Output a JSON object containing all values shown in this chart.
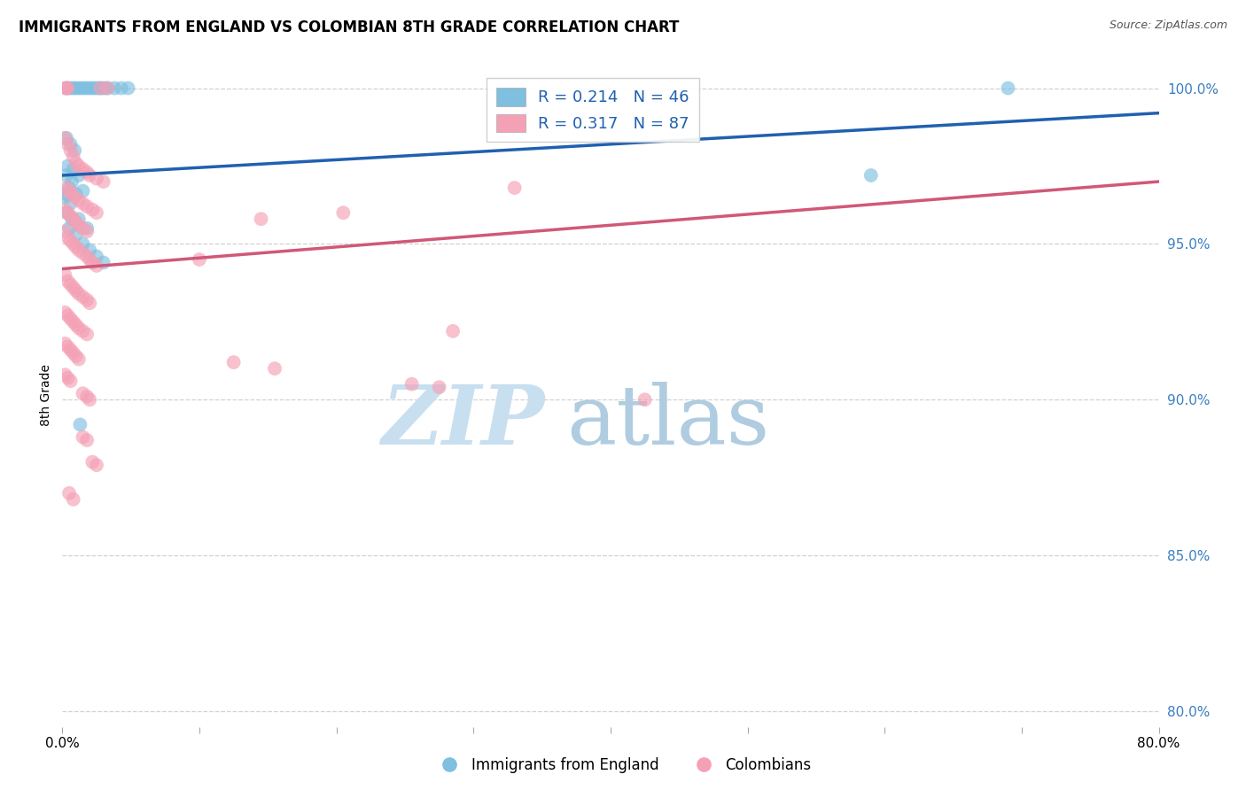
{
  "title": "IMMIGRANTS FROM ENGLAND VS COLOMBIAN 8TH GRADE CORRELATION CHART",
  "source": "Source: ZipAtlas.com",
  "ylabel": "8th Grade",
  "ylabel_right_labels": [
    "100.0%",
    "95.0%",
    "90.0%",
    "85.0%",
    "80.0%"
  ],
  "ylabel_right_values": [
    1.0,
    0.95,
    0.9,
    0.85,
    0.8
  ],
  "xmin": 0.0,
  "xmax": 0.8,
  "ymin": 0.795,
  "ymax": 1.008,
  "england_R": 0.214,
  "england_N": 46,
  "colombia_R": 0.317,
  "colombia_N": 87,
  "england_color": "#7fbfdf",
  "colombia_color": "#f4a0b5",
  "england_line_color": "#2060b0",
  "colombia_line_color": "#d05878",
  "england_trend_x": [
    0.0,
    0.8
  ],
  "england_trend_y": [
    0.972,
    0.992
  ],
  "colombia_trend_x": [
    0.0,
    0.8
  ],
  "colombia_trend_y": [
    0.942,
    0.97
  ],
  "england_scatter": [
    [
      0.003,
      1.0
    ],
    [
      0.005,
      1.0
    ],
    [
      0.007,
      1.0
    ],
    [
      0.009,
      1.0
    ],
    [
      0.011,
      1.0
    ],
    [
      0.013,
      1.0
    ],
    [
      0.015,
      1.0
    ],
    [
      0.017,
      1.0
    ],
    [
      0.019,
      1.0
    ],
    [
      0.021,
      1.0
    ],
    [
      0.023,
      1.0
    ],
    [
      0.025,
      1.0
    ],
    [
      0.027,
      1.0
    ],
    [
      0.029,
      1.0
    ],
    [
      0.031,
      1.0
    ],
    [
      0.033,
      1.0
    ],
    [
      0.038,
      1.0
    ],
    [
      0.043,
      1.0
    ],
    [
      0.048,
      1.0
    ],
    [
      0.003,
      0.984
    ],
    [
      0.006,
      0.982
    ],
    [
      0.009,
      0.98
    ],
    [
      0.004,
      0.975
    ],
    [
      0.008,
      0.974
    ],
    [
      0.012,
      0.972
    ],
    [
      0.005,
      0.968
    ],
    [
      0.01,
      0.966
    ],
    [
      0.003,
      0.96
    ],
    [
      0.007,
      0.958
    ],
    [
      0.005,
      0.955
    ],
    [
      0.01,
      0.953
    ],
    [
      0.015,
      0.95
    ],
    [
      0.02,
      0.948
    ],
    [
      0.025,
      0.946
    ],
    [
      0.03,
      0.944
    ],
    [
      0.003,
      0.966
    ],
    [
      0.006,
      0.963
    ],
    [
      0.012,
      0.958
    ],
    [
      0.018,
      0.955
    ],
    [
      0.003,
      0.972
    ],
    [
      0.007,
      0.97
    ],
    [
      0.015,
      0.967
    ],
    [
      0.013,
      0.892
    ],
    [
      0.59,
      0.972
    ],
    [
      0.69,
      1.0
    ],
    [
      0.002,
      0.965
    ]
  ],
  "colombia_scatter": [
    [
      0.002,
      1.0
    ],
    [
      0.003,
      1.0
    ],
    [
      0.004,
      1.0
    ],
    [
      0.028,
      1.0
    ],
    [
      0.033,
      1.0
    ],
    [
      0.002,
      0.984
    ],
    [
      0.004,
      0.982
    ],
    [
      0.006,
      0.98
    ],
    [
      0.008,
      0.978
    ],
    [
      0.01,
      0.976
    ],
    [
      0.012,
      0.975
    ],
    [
      0.015,
      0.974
    ],
    [
      0.018,
      0.973
    ],
    [
      0.02,
      0.972
    ],
    [
      0.025,
      0.971
    ],
    [
      0.03,
      0.97
    ],
    [
      0.003,
      0.968
    ],
    [
      0.005,
      0.967
    ],
    [
      0.007,
      0.966
    ],
    [
      0.009,
      0.965
    ],
    [
      0.012,
      0.964
    ],
    [
      0.015,
      0.963
    ],
    [
      0.018,
      0.962
    ],
    [
      0.022,
      0.961
    ],
    [
      0.025,
      0.96
    ],
    [
      0.002,
      0.961
    ],
    [
      0.004,
      0.96
    ],
    [
      0.006,
      0.959
    ],
    [
      0.008,
      0.958
    ],
    [
      0.01,
      0.957
    ],
    [
      0.012,
      0.956
    ],
    [
      0.015,
      0.955
    ],
    [
      0.018,
      0.954
    ],
    [
      0.002,
      0.954
    ],
    [
      0.004,
      0.952
    ],
    [
      0.006,
      0.951
    ],
    [
      0.008,
      0.95
    ],
    [
      0.01,
      0.949
    ],
    [
      0.012,
      0.948
    ],
    [
      0.015,
      0.947
    ],
    [
      0.018,
      0.946
    ],
    [
      0.02,
      0.945
    ],
    [
      0.022,
      0.944
    ],
    [
      0.025,
      0.943
    ],
    [
      0.002,
      0.94
    ],
    [
      0.004,
      0.938
    ],
    [
      0.006,
      0.937
    ],
    [
      0.008,
      0.936
    ],
    [
      0.01,
      0.935
    ],
    [
      0.012,
      0.934
    ],
    [
      0.015,
      0.933
    ],
    [
      0.018,
      0.932
    ],
    [
      0.02,
      0.931
    ],
    [
      0.002,
      0.928
    ],
    [
      0.004,
      0.927
    ],
    [
      0.006,
      0.926
    ],
    [
      0.008,
      0.925
    ],
    [
      0.01,
      0.924
    ],
    [
      0.012,
      0.923
    ],
    [
      0.015,
      0.922
    ],
    [
      0.018,
      0.921
    ],
    [
      0.002,
      0.918
    ],
    [
      0.004,
      0.917
    ],
    [
      0.006,
      0.916
    ],
    [
      0.008,
      0.915
    ],
    [
      0.01,
      0.914
    ],
    [
      0.012,
      0.913
    ],
    [
      0.002,
      0.908
    ],
    [
      0.004,
      0.907
    ],
    [
      0.006,
      0.906
    ],
    [
      0.015,
      0.902
    ],
    [
      0.018,
      0.901
    ],
    [
      0.02,
      0.9
    ],
    [
      0.015,
      0.888
    ],
    [
      0.018,
      0.887
    ],
    [
      0.022,
      0.88
    ],
    [
      0.025,
      0.879
    ],
    [
      0.005,
      0.87
    ],
    [
      0.008,
      0.868
    ],
    [
      0.33,
      0.968
    ],
    [
      0.205,
      0.96
    ],
    [
      0.1,
      0.945
    ],
    [
      0.145,
      0.958
    ],
    [
      0.285,
      0.922
    ],
    [
      0.125,
      0.912
    ],
    [
      0.155,
      0.91
    ],
    [
      0.255,
      0.905
    ],
    [
      0.275,
      0.904
    ],
    [
      0.425,
      0.9
    ]
  ],
  "background_color": "#ffffff",
  "grid_color": "#cccccc",
  "watermark_zip": "ZIP",
  "watermark_atlas": "atlas",
  "watermark_color_zip": "#c8dff0",
  "watermark_color_atlas": "#b0cce0"
}
